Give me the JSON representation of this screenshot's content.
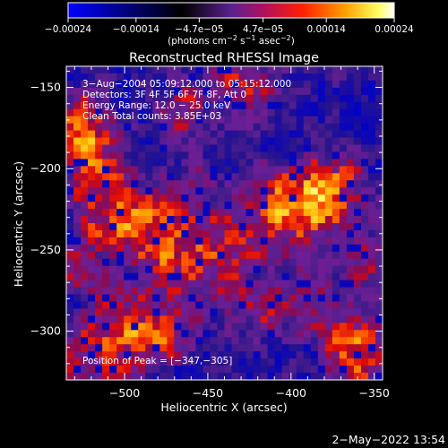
{
  "chart_data": {
    "type": "heatmap",
    "title": "Reconstructed RHESSI Image",
    "xlabel": "Heliocentric X (arcsec)",
    "ylabel": "Heliocentric Y (arcsec)",
    "xlim": [
      -535,
      -345
    ],
    "ylim": [
      -330,
      -137
    ],
    "x_ticks": [
      -500,
      -450,
      -400,
      -350
    ],
    "y_ticks": [
      -150,
      -200,
      -250,
      -300
    ],
    "x_tick_labels": [
      "−500",
      "−450",
      "−400",
      "−350"
    ],
    "y_tick_labels": [
      "−150",
      "−200",
      "−250",
      "−300"
    ],
    "colorbar": {
      "range": [
        -0.00024,
        0.00024
      ],
      "ticks": [
        -0.00024,
        -0.00014,
        -4.7e-05,
        4.7e-05,
        0.00014,
        0.00024
      ],
      "tick_labels": [
        "−0.00024",
        "−0.00014",
        "−4.7e−05",
        "4.7e−05",
        "0.00014",
        "0.00024"
      ],
      "units": "(photons cm",
      "units_exp1": "−2",
      "units_mid": " s",
      "units_exp2": "−1",
      "units_end": " asec",
      "units_exp3": "−2",
      "units_close": ")",
      "colormap": [
        "#0000ff",
        "#000000",
        "#5a2090",
        "#a01070",
        "#ff0000",
        "#ff9000",
        "#ffff00",
        "#ffffff"
      ]
    },
    "annotations": [
      "3−Aug−2004 05:09:12.000 to 05:15:12.000",
      "Detectors: 3F 4F 5F 6F 7F 8F, Att 0",
      "Energy Range: 12.0 − 25.0 keV",
      "Clean    Total counts: 3.85E+03"
    ],
    "peak_label": "Position of Peak = [−347,−305]",
    "peak": [
      -347,
      -305
    ],
    "grid": false
  },
  "footer": {
    "timestamp": "2−May−2022 13:54"
  }
}
